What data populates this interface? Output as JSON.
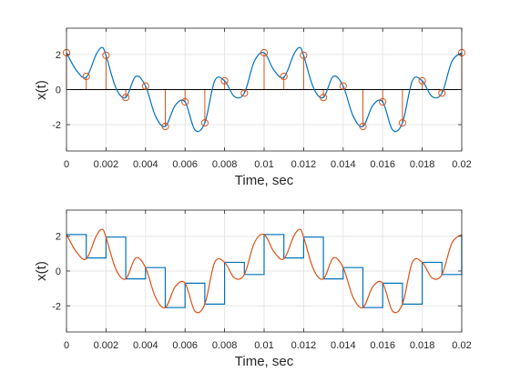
{
  "chart_data": [
    {
      "type": "line",
      "xlabel": "Time, sec",
      "ylabel": "x(t)",
      "xlim": [
        0,
        0.02
      ],
      "ylim": [
        -3.5,
        3.5
      ],
      "grid": true,
      "xticks": [
        0,
        0.002,
        0.004,
        0.006,
        0.008,
        0.01,
        0.012,
        0.014,
        0.016,
        0.018,
        0.02
      ],
      "xtick_labels": [
        "0",
        "0.002",
        "0.004",
        "0.006",
        "0.008",
        "0.01",
        "0.012",
        "0.014",
        "0.016",
        "0.018",
        "0.02"
      ],
      "yticks": [
        -2,
        0,
        2
      ],
      "ytick_labels": [
        "-2",
        "0",
        "2"
      ],
      "colors": {
        "curve": "#0072BD",
        "stems": "#D95319"
      },
      "series": [
        {
          "kind": "continuous",
          "x": [
            0,
            0.0005,
            0.001,
            0.0015,
            0.0018,
            0.002,
            0.0025,
            0.003,
            0.0035,
            0.004,
            0.0045,
            0.005,
            0.0055,
            0.006,
            0.0065,
            0.007,
            0.0075,
            0.008,
            0.0085,
            0.009,
            0.0095,
            0.01,
            0.0105,
            0.011,
            0.0115,
            0.0118,
            0.012,
            0.0125,
            0.013,
            0.0135,
            0.014,
            0.0145,
            0.015,
            0.0155,
            0.016,
            0.0165,
            0.017,
            0.0175,
            0.018,
            0.0185,
            0.019,
            0.0195,
            0.02
          ],
          "y": [
            2.1,
            1.1,
            0.7,
            2.0,
            2.4,
            1.95,
            0.1,
            -0.45,
            0.75,
            0.2,
            -1.5,
            -2.1,
            -0.9,
            -0.7,
            -2.3,
            -1.9,
            0.5,
            0.5,
            -0.4,
            -0.2,
            1.6,
            2.1,
            1.1,
            0.7,
            2.0,
            2.4,
            1.95,
            0.1,
            -0.45,
            0.75,
            0.2,
            -1.5,
            -2.1,
            -0.9,
            -0.7,
            -2.3,
            -1.9,
            0.5,
            0.5,
            -0.4,
            -0.2,
            1.6,
            2.1
          ]
        },
        {
          "kind": "samples",
          "x": [
            0,
            0.001,
            0.002,
            0.003,
            0.004,
            0.005,
            0.006,
            0.007,
            0.008,
            0.009,
            0.01,
            0.011,
            0.012,
            0.013,
            0.014,
            0.015,
            0.016,
            0.017,
            0.018,
            0.019,
            0.02
          ],
          "y": [
            2.1,
            0.75,
            1.95,
            -0.45,
            0.2,
            -2.1,
            -0.7,
            -1.9,
            0.5,
            -0.2,
            2.1,
            0.75,
            1.95,
            -0.45,
            0.2,
            -2.1,
            -0.7,
            -1.9,
            0.5,
            -0.2,
            2.1
          ]
        }
      ]
    },
    {
      "type": "line",
      "xlabel": "Time, sec",
      "ylabel": "x(t)",
      "xlim": [
        0,
        0.02
      ],
      "ylim": [
        -3.5,
        3.5
      ],
      "grid": true,
      "xticks": [
        0,
        0.002,
        0.004,
        0.006,
        0.008,
        0.01,
        0.012,
        0.014,
        0.016,
        0.018,
        0.02
      ],
      "xtick_labels": [
        "0",
        "0.002",
        "0.004",
        "0.006",
        "0.008",
        "0.01",
        "0.012",
        "0.014",
        "0.016",
        "0.018",
        "0.02"
      ],
      "yticks": [
        -2,
        0,
        2
      ],
      "ytick_labels": [
        "-2",
        "0",
        "2"
      ],
      "colors": {
        "stairs": "#0072BD",
        "curve": "#D95319"
      },
      "series": [
        {
          "kind": "zero-order-hold",
          "x": [
            0,
            0.001,
            0.002,
            0.003,
            0.004,
            0.005,
            0.006,
            0.007,
            0.008,
            0.009,
            0.01,
            0.011,
            0.012,
            0.013,
            0.014,
            0.015,
            0.016,
            0.017,
            0.018,
            0.019,
            0.02
          ],
          "y": [
            2.1,
            0.75,
            1.95,
            -0.45,
            0.2,
            -2.1,
            -0.7,
            -1.9,
            0.5,
            -0.2,
            2.1,
            0.75,
            1.95,
            -0.45,
            0.2,
            -2.1,
            -0.7,
            -1.9,
            0.5,
            -0.2,
            2.1
          ]
        },
        {
          "kind": "continuous",
          "x": [
            0,
            0.0005,
            0.001,
            0.0015,
            0.0018,
            0.002,
            0.0025,
            0.003,
            0.0035,
            0.004,
            0.0045,
            0.005,
            0.0055,
            0.006,
            0.0065,
            0.007,
            0.0075,
            0.008,
            0.0085,
            0.009,
            0.0095,
            0.01,
            0.0105,
            0.011,
            0.0115,
            0.0118,
            0.012,
            0.0125,
            0.013,
            0.0135,
            0.014,
            0.0145,
            0.015,
            0.0155,
            0.016,
            0.0165,
            0.017,
            0.0175,
            0.018,
            0.0185,
            0.019,
            0.0195,
            0.02
          ],
          "y": [
            2.1,
            1.1,
            0.7,
            2.0,
            2.4,
            1.95,
            0.1,
            -0.45,
            0.75,
            0.2,
            -1.5,
            -2.1,
            -0.9,
            -0.7,
            -2.3,
            -1.9,
            0.5,
            0.5,
            -0.4,
            -0.2,
            1.6,
            2.1,
            1.1,
            0.7,
            2.0,
            2.4,
            1.95,
            0.1,
            -0.45,
            0.75,
            0.2,
            -1.5,
            -2.1,
            -0.9,
            -0.7,
            -2.3,
            -1.9,
            0.5,
            0.5,
            -0.4,
            -0.2,
            1.6,
            2.1
          ]
        }
      ]
    }
  ]
}
